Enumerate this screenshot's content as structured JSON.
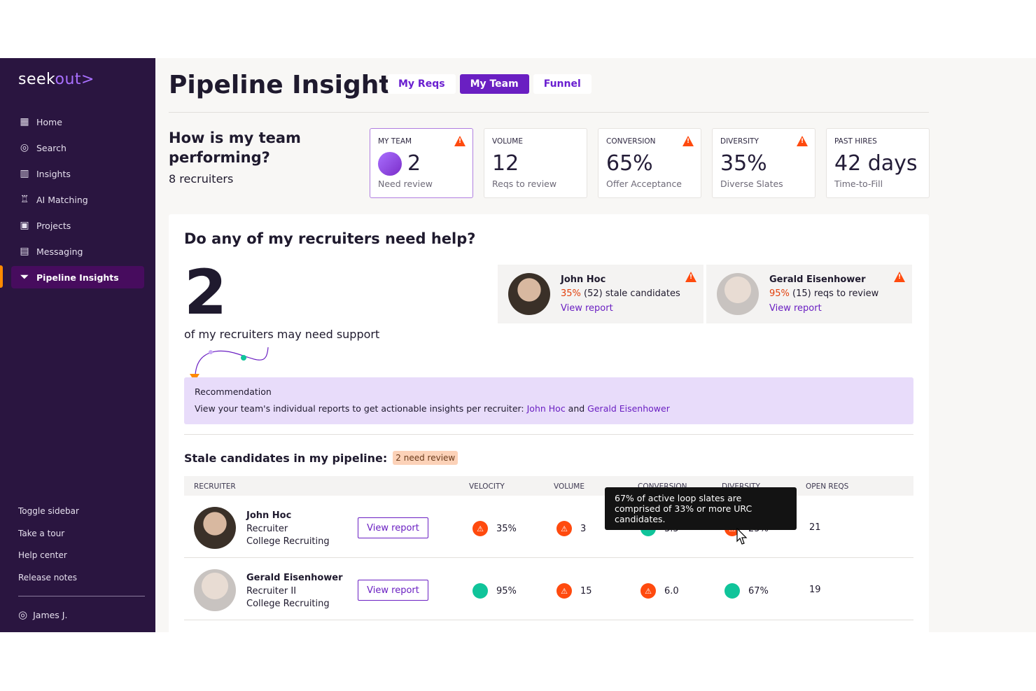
{
  "sidebar": {
    "logo_a": "seek",
    "logo_b": "out>",
    "items": [
      {
        "label": "Home",
        "icon": "grid-icon"
      },
      {
        "label": "Search",
        "icon": "search-icon"
      },
      {
        "label": "Insights",
        "icon": "chart-icon"
      },
      {
        "label": "AI Matching",
        "icon": "robot-icon"
      },
      {
        "label": "Projects",
        "icon": "folder-user-icon"
      },
      {
        "label": "Messaging",
        "icon": "message-icon"
      },
      {
        "label": "Pipeline Insights",
        "icon": "funnel-icon"
      }
    ],
    "bottom": [
      "Toggle sidebar",
      "Take a tour",
      "Help center",
      "Release notes"
    ],
    "user": "James J."
  },
  "header": {
    "title": "Pipeline Insights",
    "tabs": [
      "My Reqs",
      "My Team",
      "Funnel"
    ],
    "active_tab": "My Team"
  },
  "team": {
    "question": "How is my team performing?",
    "count": "8 recruiters"
  },
  "cards": [
    {
      "label": "MY TEAM",
      "value": "2",
      "sub": "Need review",
      "warn": true
    },
    {
      "label": "VOLUME",
      "value": "12",
      "sub": "Reqs to review",
      "warn": false
    },
    {
      "label": "CONVERSION",
      "value": "65%",
      "sub": "Offer Acceptance",
      "warn": true
    },
    {
      "label": "DIVERSITY",
      "value": "35%",
      "sub": "Diverse Slates",
      "warn": true
    },
    {
      "label": "PAST HIRES",
      "value": "42 days",
      "sub": "Time-to-Fill",
      "warn": false
    }
  ],
  "help": {
    "title": "Do any of my recruiters need help?",
    "big": "2",
    "support": "of my recruiters may need support",
    "recruiters": [
      {
        "name": "John Hoc",
        "pct": "35%",
        "rest": " (52) stale candidates",
        "link": "View report"
      },
      {
        "name": "Gerald Eisenhower",
        "pct": "95%",
        "rest": " (15) reqs to review",
        "link": "View report"
      }
    ],
    "recommendation": {
      "title": "Recommendation",
      "text": "View your team's individual reports to get actionable insights per recruiter: ",
      "link1": "John Hoc",
      "and": " and ",
      "link2": "Gerald Eisenhower"
    }
  },
  "stale": {
    "title": "Stale candidates in my pipeline:",
    "badge": "2 need review",
    "headers": [
      "RECRUITER",
      "VELOCITY",
      "VOLUME",
      "CONVERSION",
      "DIVERSITY",
      "OPEN REQS"
    ],
    "rows": [
      {
        "name": "John Hoc",
        "role": "Recruiter",
        "team": "College Recruiting",
        "button": "View report",
        "velocity": "35%",
        "velocity_status": "warn",
        "volume": "3",
        "volume_status": "warn",
        "conversion": "3.5",
        "conversion_status": "ok",
        "diversity": "25%",
        "diversity_status": "warn",
        "open_reqs": "21"
      },
      {
        "name": "Gerald Eisenhower",
        "role": "Recruiter II",
        "team": "College Recruiting",
        "button": "View report",
        "velocity": "95%",
        "velocity_status": "ok",
        "volume": "15",
        "volume_status": "warn",
        "conversion": "6.0",
        "conversion_status": "warn",
        "diversity": "67%",
        "diversity_status": "ok",
        "open_reqs": "19"
      }
    ],
    "tooltip": "67% of active loop slates are comprised of 33% or more URC candidates."
  },
  "colors": {
    "sidebar": "#2a1540",
    "accent": "#6a1fc2",
    "warn": "#ff4a0e",
    "ok": "#10c49a"
  }
}
